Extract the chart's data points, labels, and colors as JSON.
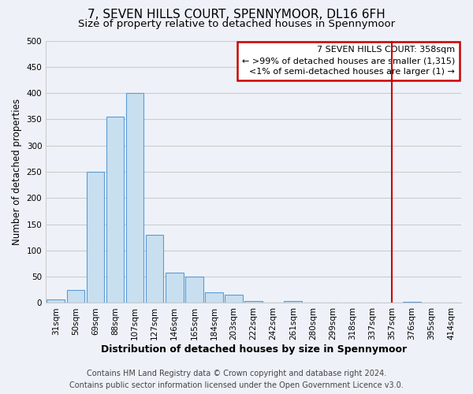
{
  "title": "7, SEVEN HILLS COURT, SPENNYMOOR, DL16 6FH",
  "subtitle": "Size of property relative to detached houses in Spennymoor",
  "xlabel": "Distribution of detached houses by size in Spennymoor",
  "ylabel": "Number of detached properties",
  "bar_color": "#c8dff0",
  "bar_edge_color": "#5b9bd5",
  "background_color": "#eef2f8",
  "plot_bg_color": "#eef2f8",
  "grid_color": "#cccccc",
  "bin_labels": [
    "31sqm",
    "50sqm",
    "69sqm",
    "88sqm",
    "107sqm",
    "127sqm",
    "146sqm",
    "165sqm",
    "184sqm",
    "203sqm",
    "222sqm",
    "242sqm",
    "261sqm",
    "280sqm",
    "299sqm",
    "318sqm",
    "337sqm",
    "357sqm",
    "376sqm",
    "395sqm",
    "414sqm"
  ],
  "bar_heights": [
    7,
    25,
    250,
    355,
    400,
    130,
    58,
    50,
    20,
    15,
    3,
    0,
    3,
    0,
    0,
    0,
    0,
    0,
    2,
    0,
    0
  ],
  "ylim": [
    0,
    500
  ],
  "yticks": [
    0,
    50,
    100,
    150,
    200,
    250,
    300,
    350,
    400,
    450,
    500
  ],
  "vline_color": "#cc0000",
  "annotation_title": "7 SEVEN HILLS COURT: 358sqm",
  "annotation_line1": "← >99% of detached houses are smaller (1,315)",
  "annotation_line2": "<1% of semi-detached houses are larger (1) →",
  "annotation_box_color": "white",
  "annotation_box_edge": "#cc0000",
  "footer_line1": "Contains HM Land Registry data © Crown copyright and database right 2024.",
  "footer_line2": "Contains public sector information licensed under the Open Government Licence v3.0.",
  "title_fontsize": 11,
  "subtitle_fontsize": 9.5,
  "xlabel_fontsize": 9,
  "ylabel_fontsize": 8.5,
  "tick_fontsize": 7.5,
  "footer_fontsize": 7,
  "annotation_fontsize": 8
}
